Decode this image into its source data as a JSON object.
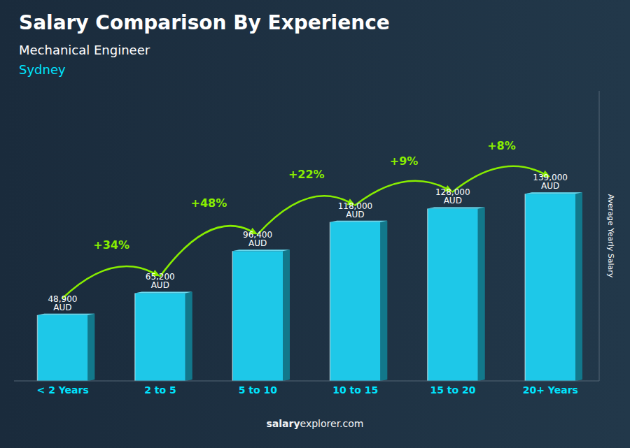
{
  "chart_data": {
    "type": "bar",
    "title": "Salary Comparison By Experience",
    "subtitle": [
      "Mechanical Engineer",
      "Sydney"
    ],
    "categories": [
      "< 2 Years",
      "2 to 5",
      "5 to 10",
      "10 to 15",
      "15 to 20",
      "20+ Years"
    ],
    "values": [
      48900,
      65200,
      96400,
      118000,
      128000,
      139000
    ],
    "value_labels": [
      "48,900 AUD",
      "65,200 AUD",
      "96,400 AUD",
      "118,000 AUD",
      "128,000 AUD",
      "139,000 AUD"
    ],
    "data_labels": true,
    "color": "#1EC8E8",
    "ylabel": "Average Yearly Salary",
    "ylim": [
      0,
      215450
    ],
    "tick_labels": "x",
    "grid": false,
    "annotations": [
      {
        "text": "+34%",
        "color": "#88EE00"
      },
      {
        "text": "+48%",
        "color": "#88EE00"
      },
      {
        "text": "+22%",
        "color": "#88EE00"
      },
      {
        "text": "+9%",
        "color": "#88EE00"
      },
      {
        "text": "+8%",
        "color": "#88EE00"
      }
    ],
    "source": [
      "salary",
      "explorer.com"
    ]
  }
}
